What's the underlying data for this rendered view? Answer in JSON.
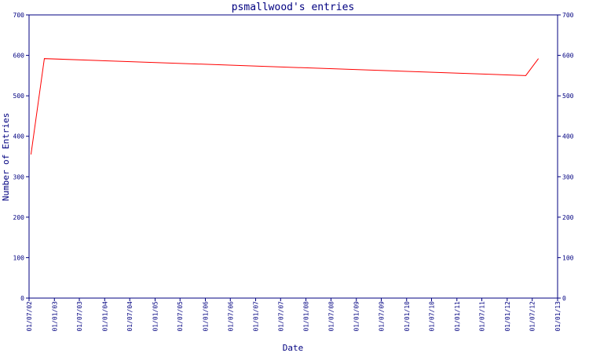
{
  "chart_data": {
    "type": "line",
    "title": "psmallwood's entries",
    "x_label": "Date",
    "y_label": "Number of Entries",
    "x": [
      "15/07/02",
      "20/10/02",
      "15/05/12",
      "15/08/12"
    ],
    "series": [
      {
        "name": "entries",
        "color": "#ff0000",
        "values": [
          355,
          592,
          550,
          592
        ]
      }
    ],
    "xlim": [
      "01/07/02",
      "01/01/13"
    ],
    "xticks": [
      "01/07/02",
      "01/01/03",
      "01/07/03",
      "01/01/04",
      "01/07/04",
      "01/01/05",
      "01/07/05",
      "01/01/06",
      "01/07/06",
      "01/01/07",
      "01/07/07",
      "01/01/08",
      "01/07/08",
      "01/01/09",
      "01/07/09",
      "01/01/10",
      "01/07/10",
      "01/01/11",
      "01/07/11",
      "01/01/12",
      "01/07/12",
      "01/01/13"
    ],
    "ylim": [
      0,
      700
    ],
    "yticks": [
      0,
      100,
      200,
      300,
      400,
      500,
      600,
      700
    ],
    "axis_color": "#000080"
  }
}
